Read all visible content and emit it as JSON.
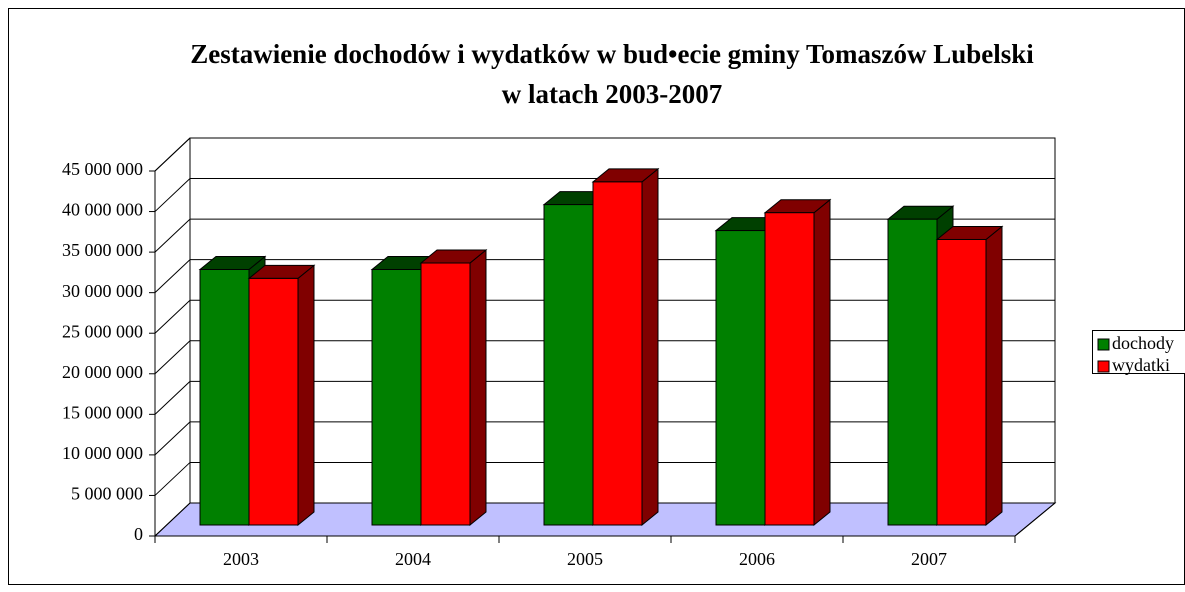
{
  "chart_data": {
    "type": "bar3d",
    "title": "Zestawienie dochodów i wydatków w bud•ecie gminy Tomaszów Lubelski",
    "subtitle": "w latach 2003-2007",
    "categories": [
      "2003",
      "2004",
      "2005",
      "2006",
      "2007"
    ],
    "series": [
      {
        "name": "dochody",
        "color": "#008000",
        "shade": "#004000",
        "values": [
          31500000,
          31500000,
          39500000,
          36300000,
          37700000
        ]
      },
      {
        "name": "wydatki",
        "color": "#ff0000",
        "shade": "#800000",
        "values": [
          30400000,
          32300000,
          42300000,
          38500000,
          35200000
        ]
      }
    ],
    "ylim": [
      0,
      45000000
    ],
    "yticks": [
      {
        "value": 0,
        "label": "0"
      },
      {
        "value": 5000000,
        "label": "5 000 000"
      },
      {
        "value": 10000000,
        "label": "10 000 000"
      },
      {
        "value": 15000000,
        "label": "15 000 000"
      },
      {
        "value": 20000000,
        "label": "20 000 000"
      },
      {
        "value": 25000000,
        "label": "25 000 000"
      },
      {
        "value": 30000000,
        "label": "30 000 000"
      },
      {
        "value": 35000000,
        "label": "35 000 000"
      },
      {
        "value": 40000000,
        "label": "40 000 000"
      },
      {
        "value": 45000000,
        "label": "45 000 000"
      }
    ],
    "grid": true,
    "floor_color": "#c0c0ff",
    "legend": "right"
  }
}
